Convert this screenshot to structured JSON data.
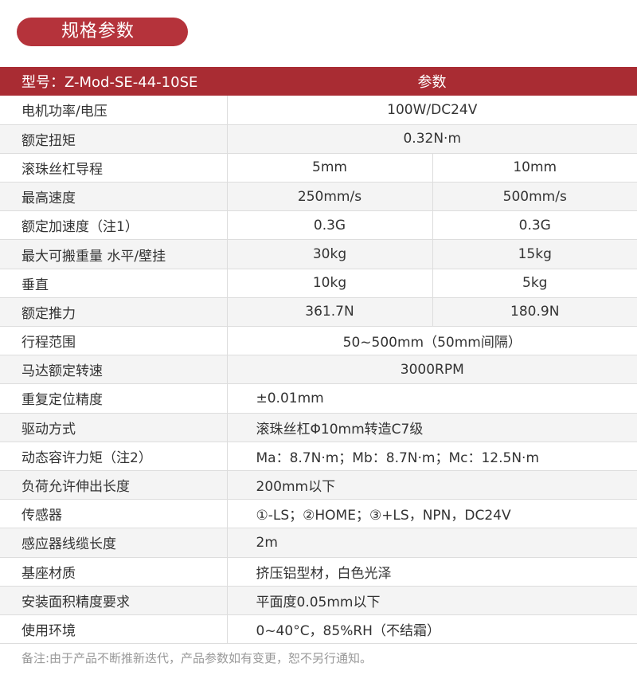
{
  "title": "规格参数",
  "header": {
    "model": "型号：Z-Mod-SE-44-10SE",
    "param": "参数"
  },
  "rows": [
    {
      "label": "电机功率/电压",
      "value": "100W/DC24V"
    },
    {
      "label": "额定扭矩",
      "value": "0.32N·m"
    },
    {
      "label": "滚珠丝杠导程",
      "a": "5mm",
      "b": "10mm"
    },
    {
      "label": "最高速度",
      "a": "250mm/s",
      "b": "500mm/s"
    },
    {
      "label": "额定加速度（注1）",
      "a": "0.3G",
      "b": "0.3G"
    },
    {
      "label": "最大可搬重量 水平/壁挂",
      "a": "30kg",
      "b": "15kg"
    },
    {
      "label": "垂直",
      "a": "10kg",
      "b": "5kg"
    },
    {
      "label": "额定推力",
      "a": "361.7N",
      "b": "180.9N"
    },
    {
      "label": "行程范围",
      "value": "50~500mm（50mm间隔）"
    },
    {
      "label": "马达额定转速",
      "value": "3000RPM"
    },
    {
      "label": "重复定位精度",
      "value": "±0.01mm"
    },
    {
      "label": "驱动方式",
      "value": "滚珠丝杠Φ10mm转造C7级"
    },
    {
      "label": "动态容许力矩（注2）",
      "value": "Ma：8.7N·m；Mb：8.7N·m；Mc：12.5N·m"
    },
    {
      "label": "负荷允许伸出长度",
      "value": "200mm以下"
    },
    {
      "label": "传感器",
      "value": "①-LS；②HOME；③+LS，NPN，DC24V"
    },
    {
      "label": "感应器线缆长度",
      "value": "2m"
    },
    {
      "label": "基座材质",
      "value": "挤压铝型材，白色光泽"
    },
    {
      "label": "安装面积精度要求",
      "value": "平面度0.05mm以下"
    },
    {
      "label": "使用环境",
      "value": "0~40°C，85%RH（不结霜）"
    }
  ],
  "note": "备注:由于产品不断推新迭代，产品参数如有变更，恕不另行通知。",
  "colors": {
    "accent": "#a92c33",
    "pill": "#b5333b",
    "stripe": "#f4f4f4"
  }
}
